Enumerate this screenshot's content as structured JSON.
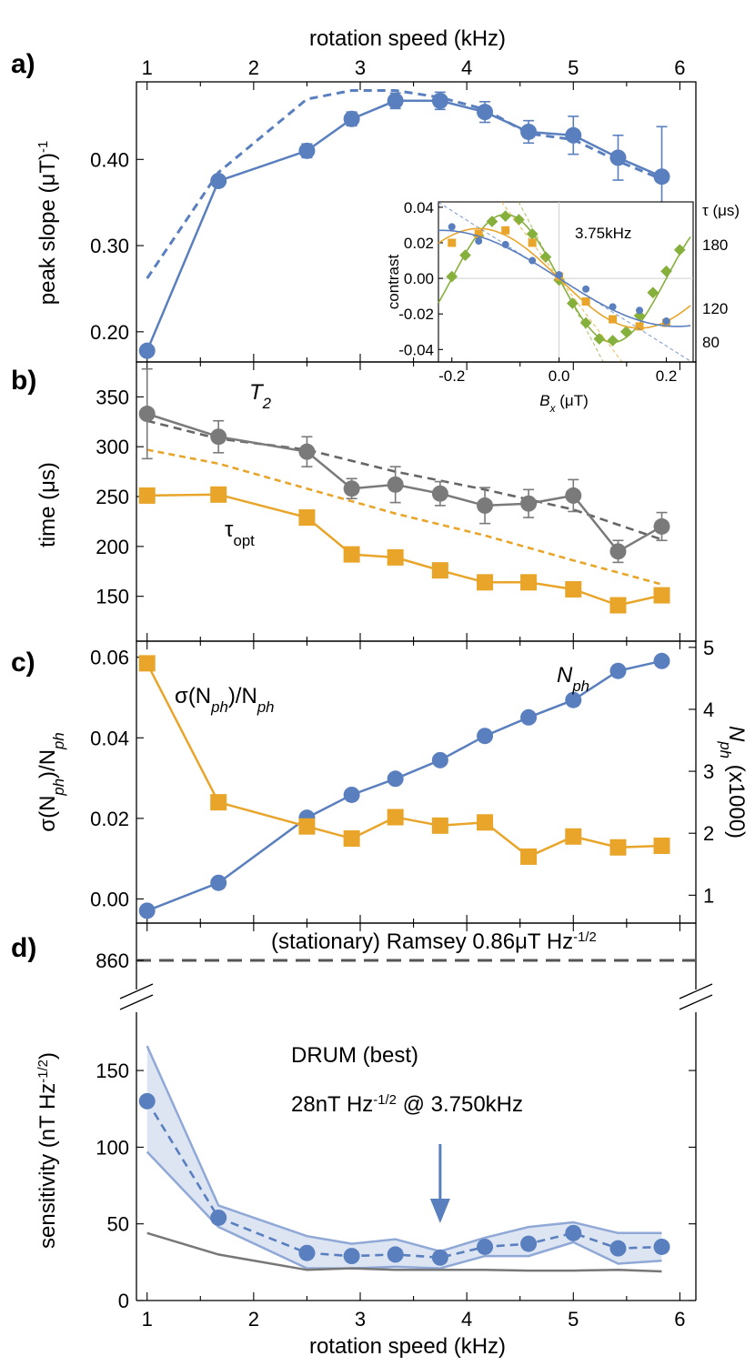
{
  "colors": {
    "blue": "#5a7fbf",
    "orange": "#e8a52a",
    "gray": "#7a7a7a",
    "green": "#86b03c",
    "band": "#dde5f3",
    "dash": "#555555"
  },
  "top_axis": {
    "label": "rotation speed (kHz)",
    "ticks": [
      "1",
      "2",
      "3",
      "4",
      "5",
      "6"
    ]
  },
  "bottom_axis": {
    "label": "rotation speed (kHz)",
    "ticks": [
      "1",
      "2",
      "3",
      "4",
      "5",
      "6"
    ]
  },
  "chart_data": [
    {
      "panel": "a)",
      "type": "line",
      "ylabel": "peak slope (μT)",
      "ylabel_sup": "-1",
      "yticks": [
        "0.20",
        "0.30",
        "0.40"
      ],
      "ylim": [
        0.165,
        0.49
      ],
      "xlim": [
        0.9,
        6.15
      ],
      "x": [
        1.0,
        1.67,
        2.5,
        2.92,
        3.33,
        3.75,
        4.17,
        4.58,
        5.0,
        5.42,
        5.83
      ],
      "series": [
        {
          "style": "measured",
          "values": [
            0.178,
            0.375,
            0.41,
            0.447,
            0.468,
            0.468,
            0.455,
            0.432,
            0.428,
            0.402,
            0.38
          ],
          "err": [
            0.005,
            0.006,
            0.008,
            0.008,
            0.009,
            0.01,
            0.012,
            0.013,
            0.022,
            0.026,
            0.058
          ]
        },
        {
          "style": "model",
          "values": [
            0.262,
            0.385,
            0.47,
            0.48,
            0.48,
            0.472,
            0.458,
            0.43,
            0.423,
            0.398,
            0.377
          ]
        }
      ],
      "inset": {
        "title": "3.75kHz",
        "xlabel_main": "B",
        "xlabel_sub": "x",
        "xlabel_unit": "(μT)",
        "ylabel": "contrast",
        "tau_header": "τ (μs)",
        "xticks": [
          "-0.2",
          "0.0",
          "0.2"
        ],
        "yticks": [
          "0.04",
          "0.02",
          "0.00",
          "-0.02",
          "-0.04"
        ],
        "xlim": [
          -0.225,
          0.25
        ],
        "ylim": [
          -0.047,
          0.043
        ],
        "series": [
          {
            "name": "180",
            "color_key": "green",
            "x": [
              -0.2,
              -0.175,
              -0.15,
              -0.125,
              -0.1,
              -0.075,
              -0.05,
              -0.025,
              0.0,
              0.025,
              0.05,
              0.075,
              0.1,
              0.125,
              0.15,
              0.175,
              0.2,
              0.225
            ],
            "values": [
              0.001,
              0.013,
              0.024,
              0.032,
              0.035,
              0.033,
              0.025,
              0.012,
              -0.001,
              -0.014,
              -0.025,
              -0.034,
              -0.035,
              -0.03,
              -0.021,
              -0.008,
              0.004,
              0.016
            ]
          },
          {
            "name": "120",
            "color_key": "orange",
            "x": [
              -0.2,
              -0.15,
              -0.1,
              -0.05,
              0.0,
              0.05,
              0.1,
              0.15,
              0.2
            ],
            "values": [
              0.02,
              0.025,
              0.027,
              0.02,
              0.001,
              -0.013,
              -0.023,
              -0.027,
              -0.025
            ]
          },
          {
            "name": "80",
            "color_key": "blue",
            "x": [
              -0.2,
              -0.15,
              -0.1,
              -0.05,
              0.0,
              0.05,
              0.1,
              0.15,
              0.2
            ],
            "values": [
              0.029,
              0.021,
              0.019,
              0.01,
              0.002,
              -0.006,
              -0.016,
              -0.018,
              -0.024
            ]
          }
        ]
      }
    },
    {
      "panel": "b)",
      "type": "line",
      "ylabel": "time (μs)",
      "yticks": [
        "150",
        "200",
        "250",
        "300",
        "350"
      ],
      "ylim": [
        105,
        385
      ],
      "xlim": [
        0.9,
        6.15
      ],
      "x": [
        1.0,
        1.67,
        2.5,
        2.92,
        3.33,
        3.75,
        4.17,
        4.58,
        5.0,
        5.42,
        5.83
      ],
      "series": [
        {
          "name_main": "T",
          "name_sub": "2",
          "style": "measured",
          "values": [
            333,
            310,
            295,
            258,
            262,
            253,
            241,
            243,
            251,
            195,
            220
          ],
          "err": [
            45,
            16,
            15,
            10,
            18,
            12,
            18,
            14,
            16,
            11,
            14
          ]
        },
        {
          "style": "model",
          "x": [
            1.0,
            1.67,
            2.5,
            3.33,
            4.17,
            5.0,
            5.83
          ],
          "values": [
            326,
            308,
            297,
            275,
            257,
            237,
            207
          ]
        },
        {
          "name_main": "τ",
          "name_sub": "opt",
          "style": "measured",
          "values": [
            251,
            252,
            229,
            192,
            189,
            176,
            164,
            164,
            157,
            141,
            151
          ]
        },
        {
          "style": "model",
          "x": [
            1.0,
            1.67,
            2.5,
            3.33,
            4.17,
            5.0,
            5.83
          ],
          "values": [
            297,
            283,
            258,
            233,
            211,
            186,
            162
          ]
        }
      ]
    },
    {
      "panel": "c)",
      "type": "line",
      "ylabel_left": "σ(N",
      "ylabel_left_sub": "ph",
      "ylabel_left_mid": ")/N",
      "ylabel_left_sub2": "ph",
      "ylabel_right_main": "N",
      "ylabel_right_sub": "ph",
      "ylabel_right_suffix": " (x1000)",
      "yticks_left": [
        "0.00",
        "0.02",
        "0.04",
        "0.06"
      ],
      "yticks_right": [
        "1",
        "2",
        "3",
        "4",
        "5"
      ],
      "ylim_left": [
        -0.006,
        0.064
      ],
      "ylim_right": [
        0.55,
        5.1
      ],
      "xlim": [
        0.9,
        6.15
      ],
      "x": [
        1.0,
        1.67,
        2.5,
        2.92,
        3.33,
        3.75,
        4.17,
        4.58,
        5.0,
        5.42,
        5.83
      ],
      "series": [
        {
          "name_main": "σ(N",
          "name_sub": "ph",
          "name_mid": ")/N",
          "name_sub2": "ph",
          "axis": "left",
          "values": [
            0.0585,
            0.024,
            0.018,
            0.015,
            0.0203,
            0.0182,
            0.019,
            0.0105,
            0.0155,
            0.0128,
            0.0132
          ]
        },
        {
          "name_main": "N",
          "name_sub": "ph",
          "axis": "right",
          "values": [
            0.75,
            1.2,
            2.25,
            2.62,
            2.88,
            3.18,
            3.57,
            3.87,
            4.15,
            4.62,
            4.78
          ]
        }
      ]
    },
    {
      "panel": "d)",
      "type": "line",
      "ylabel": "sensitivity (nT Hz",
      "ylabel_sup": "-1/2",
      "ylabel_end": ")",
      "yticks_lower": [
        "0",
        "50",
        "100",
        "150"
      ],
      "yticks_upper": [
        "860"
      ],
      "ylim": [
        0,
        172
      ],
      "xlim": [
        0.9,
        6.15
      ],
      "ramsey": {
        "label": "(stationary) Ramsey 0.86μT Hz",
        "label_sup": "-1/2",
        "value": 860
      },
      "annotation_line1": "DRUM (best)",
      "annotation_line2_a": "28nT Hz",
      "annotation_line2_sup": "-1/2",
      "annotation_line2_b": " @ 3.750kHz",
      "arrow_x": 3.75,
      "x": [
        1.0,
        1.67,
        2.5,
        2.92,
        3.33,
        3.75,
        4.17,
        4.58,
        5.0,
        5.42,
        5.83
      ],
      "series": [
        {
          "style": "measured",
          "values": [
            130,
            54,
            31,
            29,
            30,
            28,
            35,
            37,
            44,
            34,
            35
          ],
          "upper": [
            166,
            62,
            42,
            37,
            40,
            32,
            41,
            48,
            51,
            44,
            44
          ],
          "lower": [
            97,
            48,
            21,
            21,
            22,
            21,
            29,
            29,
            38,
            24,
            26
          ]
        },
        {
          "style": "limit",
          "values": [
            44,
            30,
            20,
            21,
            20,
            20,
            20,
            19.5,
            19.5,
            20,
            19
          ]
        }
      ]
    }
  ]
}
